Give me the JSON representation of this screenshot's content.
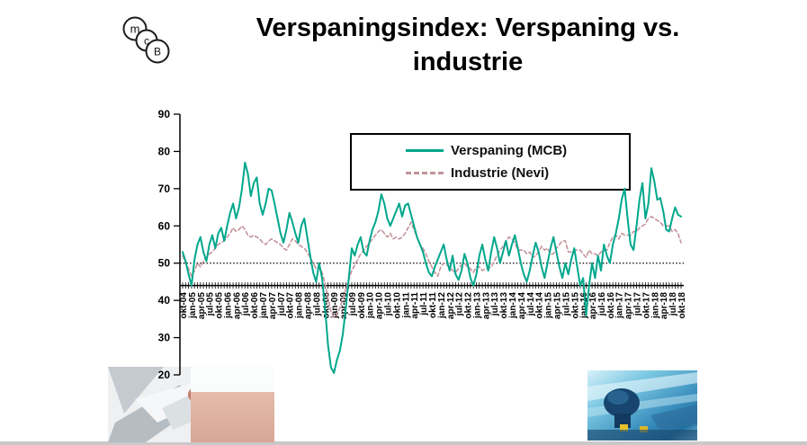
{
  "slide": {
    "title_line1": "Verspaningsindex: Verspaning vs.",
    "title_line2": "industrie"
  },
  "logo": {
    "letters": [
      "m",
      "c",
      "B"
    ]
  },
  "legend": {
    "entries": [
      {
        "label": "Verspaning (MCB)",
        "color": "#00a78c",
        "style": "solid"
      },
      {
        "label": "Industrie (Nevi)",
        "color": "#c4939b",
        "style": "dashed"
      }
    ],
    "position": "inside-top-center"
  },
  "chart_data": {
    "type": "line",
    "ylim": [
      20,
      90
    ],
    "yticks": [
      20,
      30,
      40,
      50,
      60,
      70,
      80,
      90
    ],
    "reference_line_y": 50,
    "x_axis_cross_value": 44,
    "grid": "off",
    "x_unit": "monthly series, tick label every 3rd month, labels rotated 90deg",
    "x_tick_labels": [
      "okt-04",
      "jan-05",
      "apr-05",
      "jul-05",
      "okt-05",
      "jan-06",
      "apr-06",
      "jul-06",
      "okt-06",
      "jan-07",
      "apr-07",
      "jul-07",
      "okt-07",
      "jan-08",
      "apr-08",
      "jul-08",
      "okt-08",
      "jan-09",
      "apr-09",
      "jul-09",
      "okt-09",
      "jan-10",
      "apr-10",
      "jul-10",
      "okt-10",
      "jan-11",
      "apr-11",
      "jul-11",
      "okt-11",
      "jan-12",
      "apr-12",
      "jul-12",
      "okt-12",
      "jan-13",
      "apr-13",
      "jul-13",
      "okt-13",
      "jan-14",
      "apr-14",
      "jul-14",
      "okt-14",
      "jan-15",
      "apr-15",
      "jul-15",
      "okt-15",
      "jan-16",
      "apr-16",
      "jul-16",
      "okt-16",
      "jan-17",
      "apr-17",
      "jul-17",
      "okt-17",
      "jan-18",
      "apr-18",
      "jul-18",
      "okt-18"
    ],
    "series": [
      {
        "name": "Industrie (Nevi)",
        "color": "#c4939b",
        "dash": "4 3",
        "width": 1.6,
        "values": [
          52,
          50,
          48.5,
          46.5,
          48,
          50,
          49,
          50.5,
          51.5,
          52.5,
          53,
          54,
          55,
          55.5,
          56,
          57,
          58,
          59.5,
          58.5,
          59,
          60,
          59,
          57.5,
          57,
          57.5,
          57,
          56.5,
          55.5,
          55,
          56,
          56.5,
          56,
          55.5,
          55,
          54,
          53.5,
          55,
          56.5,
          56,
          55,
          54.5,
          54,
          53,
          51.5,
          50,
          48.5,
          49,
          47.5,
          44.5,
          40.5,
          37,
          35.5,
          36,
          38,
          40.5,
          43,
          45.5,
          48,
          49.5,
          51,
          52.5,
          53.5,
          54.5,
          55.5,
          56.5,
          57.5,
          58.5,
          59,
          58,
          57,
          58,
          56.5,
          57,
          56.5,
          57,
          58,
          59.5,
          61,
          59,
          57,
          55,
          54,
          52.5,
          50.5,
          49,
          47.5,
          46.5,
          49,
          50,
          49.5,
          49,
          48,
          47.5,
          48.5,
          49.5,
          50,
          49,
          48.5,
          47.5,
          49,
          49,
          48,
          48.5,
          48.5,
          49,
          50.5,
          52,
          53.5,
          54.5,
          56,
          57,
          56.5,
          55.5,
          53.5,
          53.5,
          53.5,
          52.5,
          53,
          51.5,
          52,
          53,
          54.5,
          53.5,
          54,
          52.5,
          52.5,
          54,
          55,
          56,
          56,
          53,
          53,
          53.5,
          53.5,
          53.5,
          52.5,
          51.5,
          53.5,
          52.5,
          52.5,
          52,
          53,
          53.5,
          53.5,
          55.5,
          57,
          57.5,
          56.5,
          58,
          57.5,
          57.5,
          57.5,
          58.5,
          58.5,
          59.5,
          60,
          60.5,
          62,
          62.5,
          62,
          61.5,
          61,
          60,
          60,
          60,
          58.5,
          59,
          58,
          55.5
        ]
      },
      {
        "name": "Verspaning (MCB)",
        "color": "#00a78c",
        "dash": null,
        "width": 2,
        "values": [
          53,
          50.5,
          47,
          44,
          51,
          55,
          57,
          53,
          50.5,
          55,
          57.5,
          54,
          58,
          59.5,
          56,
          60,
          63.5,
          66,
          62,
          65,
          70,
          77,
          74,
          68,
          71.5,
          73,
          66,
          63,
          66,
          70,
          69.5,
          66,
          62,
          58,
          55.5,
          59,
          63.5,
          61,
          58,
          55.5,
          60,
          62,
          57,
          52,
          47.5,
          45,
          50,
          46,
          38,
          28,
          22,
          20.5,
          24,
          26.5,
          31,
          38,
          46,
          54,
          52,
          55,
          57,
          53,
          52,
          56,
          59,
          61,
          64,
          68.5,
          66,
          62,
          60,
          62,
          64,
          66,
          62.5,
          65.5,
          66,
          63,
          60,
          57,
          55,
          53,
          50,
          47.5,
          46.5,
          49,
          51,
          53,
          55,
          51,
          48,
          52,
          47,
          45.5,
          48,
          52.5,
          50,
          46,
          44,
          47,
          52,
          55,
          51,
          48,
          53,
          57,
          54,
          50,
          53,
          56,
          52,
          55,
          57.5,
          54,
          50,
          47,
          45,
          48,
          52,
          55.5,
          53,
          49,
          46,
          50,
          54,
          57,
          53,
          49,
          46,
          50,
          47,
          51,
          54,
          49,
          44,
          46,
          36,
          44,
          50,
          46,
          52,
          48,
          55,
          52,
          50,
          55,
          58,
          62,
          67,
          70,
          62,
          55,
          53.5,
          60,
          67,
          71.5,
          62,
          66,
          75.5,
          72,
          67,
          67.5,
          64,
          59,
          58.5,
          62,
          65,
          63,
          62.5
        ]
      }
    ]
  },
  "photos": {
    "left_caption": "",
    "right_caption": ""
  }
}
